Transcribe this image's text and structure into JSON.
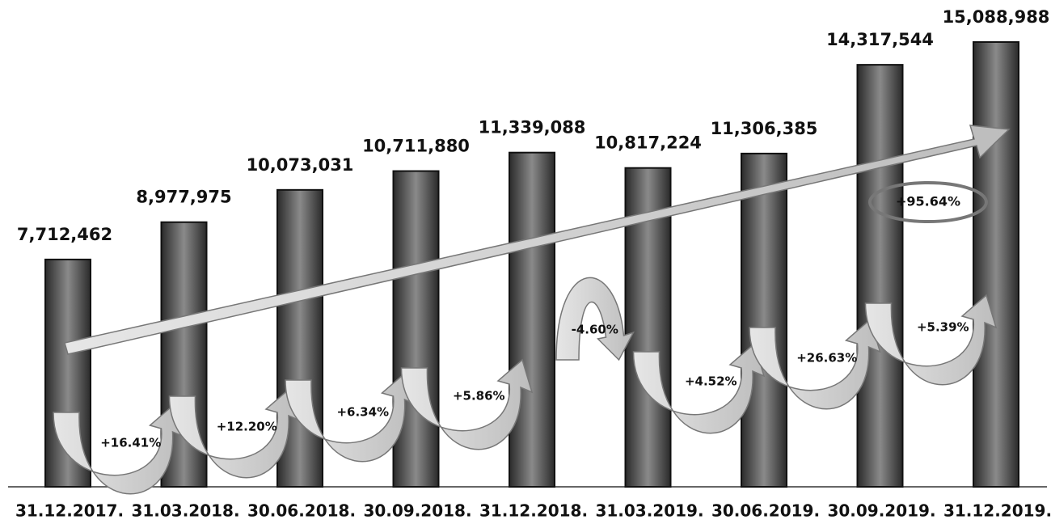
{
  "chart_data": {
    "type": "bar",
    "categories": [
      "31.12.2017.",
      "31.03.2018.",
      "30.06.2018.",
      "30.09.2018.",
      "31.12.2018.",
      "31.03.2019.",
      "30.06.2019.",
      "30.09.2019.",
      "31.12.2019."
    ],
    "values": [
      7712462,
      8977975,
      10073031,
      10711880,
      11339088,
      10817224,
      11306385,
      14317544,
      15088988
    ],
    "value_labels": [
      "7,712,462",
      "8,977,975",
      "10,073,031",
      "10,711,880",
      "11,339,088",
      "10,817,224",
      "11,306,385",
      "14,317,544",
      "15,088,988"
    ],
    "changes": [
      "+16.41%",
      "+12.20%",
      "+6.34%",
      "+5.86%",
      "-4.60%",
      "+4.52%",
      "+26.63%",
      "+5.39%"
    ],
    "total_change": "+95.64%",
    "color": "#6e6e6e"
  }
}
